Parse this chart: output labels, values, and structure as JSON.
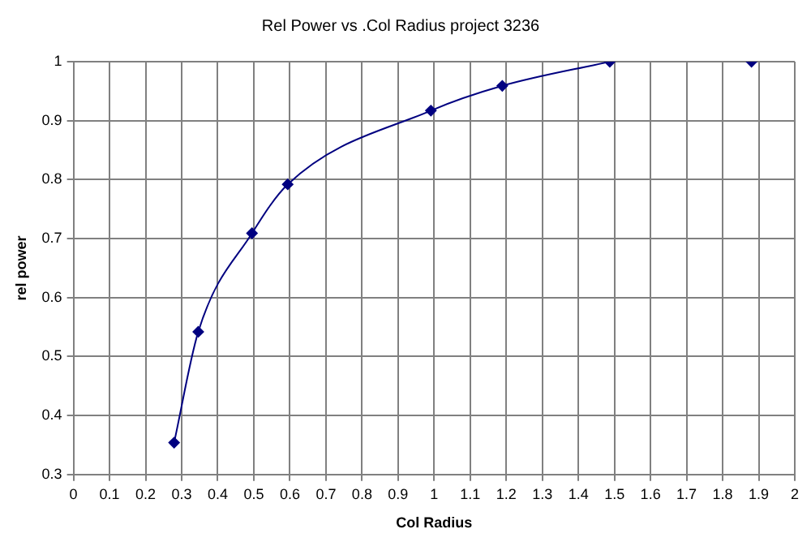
{
  "chart_data": {
    "type": "line",
    "title": "Rel Power vs .Col Radius project 3236",
    "xlabel": "Col Radius",
    "ylabel": "rel power",
    "series": [
      {
        "color": "#000080",
        "x": [
          0.279,
          0.346,
          0.495,
          0.594,
          0.991,
          1.189,
          1.487
        ],
        "values": [
          0.354,
          0.542,
          0.709,
          0.792,
          0.917,
          0.959,
          1.0
        ]
      },
      {
        "type": "scatter",
        "color": "#000080",
        "x": [
          1.88
        ],
        "values": [
          1.0
        ]
      }
    ],
    "xlim": [
      0,
      2
    ],
    "xticks": [
      0,
      0.1,
      0.2,
      0.3,
      0.4,
      0.5,
      0.6,
      0.7,
      0.8,
      0.9,
      1,
      1.1,
      1.2,
      1.3,
      1.4,
      1.5,
      1.6,
      1.7,
      1.8,
      1.9,
      2
    ],
    "ylim": [
      0.3,
      1
    ],
    "yticks": [
      0.3,
      0.4,
      0.5,
      0.6,
      0.7,
      0.8,
      0.9,
      1
    ],
    "grid": true,
    "marker": "diamond",
    "line_style": "solid",
    "legend": false
  }
}
